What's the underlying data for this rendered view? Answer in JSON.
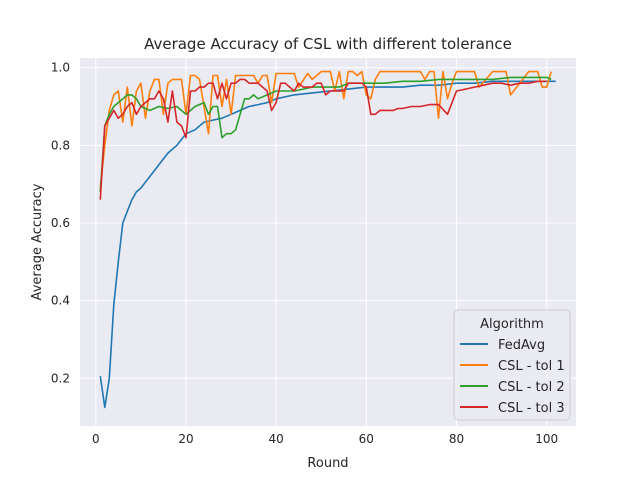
{
  "chart_data": {
    "type": "line",
    "title": "Average Accuracy of CSL with different tolerance",
    "xlabel": "Round",
    "ylabel": "Average Accuracy",
    "xlim": [
      -3.5,
      106.5
    ],
    "ylim": [
      0.077,
      1.025
    ],
    "xticks": [
      0,
      20,
      40,
      60,
      80,
      100
    ],
    "yticks": [
      0.2,
      0.4,
      0.6,
      0.8,
      1.0
    ],
    "xtick_labels": [
      "0",
      "20",
      "40",
      "60",
      "80",
      "100"
    ],
    "ytick_labels": [
      "0.2",
      "0.4",
      "0.6",
      "0.8",
      "1.0"
    ],
    "grid": true,
    "legend": {
      "title": "Algorithm",
      "position": "lower-right"
    },
    "series": [
      {
        "name": "FedAvg",
        "color": "#1f77b4",
        "x": [
          1,
          2,
          3,
          4,
          5,
          6,
          7,
          8,
          9,
          10,
          12,
          14,
          16,
          18,
          20,
          22,
          24,
          26,
          28,
          30,
          32,
          34,
          36,
          38,
          40,
          44,
          48,
          52,
          56,
          60,
          64,
          68,
          72,
          76,
          80,
          84,
          88,
          92,
          96,
          100,
          102
        ],
        "y": [
          0.205,
          0.125,
          0.2,
          0.39,
          0.5,
          0.6,
          0.63,
          0.66,
          0.68,
          0.69,
          0.72,
          0.75,
          0.78,
          0.8,
          0.83,
          0.84,
          0.86,
          0.865,
          0.87,
          0.88,
          0.89,
          0.9,
          0.905,
          0.91,
          0.92,
          0.93,
          0.935,
          0.94,
          0.945,
          0.95,
          0.95,
          0.95,
          0.955,
          0.955,
          0.96,
          0.96,
          0.965,
          0.965,
          0.965,
          0.965,
          0.965
        ]
      },
      {
        "name": "CSL - tol 1",
        "color": "#ff7f0e",
        "x": [
          1,
          2,
          3,
          4,
          5,
          6,
          7,
          8,
          9,
          10,
          11,
          12,
          13,
          14,
          15,
          16,
          17,
          18,
          19,
          20,
          21,
          22,
          23,
          24,
          25,
          26,
          27,
          28,
          29,
          30,
          31,
          32,
          33,
          34,
          35,
          36,
          37,
          38,
          39,
          40,
          44,
          45,
          47,
          48,
          50,
          52,
          53,
          54,
          55,
          56,
          57,
          58,
          59,
          60,
          61,
          62,
          63,
          64,
          65,
          66,
          68,
          70,
          72,
          73,
          74,
          75,
          76,
          77,
          78,
          79,
          80,
          84,
          85,
          88,
          89,
          90,
          91,
          92,
          96,
          98,
          99,
          100,
          101
        ],
        "y": [
          0.69,
          0.8,
          0.89,
          0.93,
          0.94,
          0.86,
          0.95,
          0.85,
          0.94,
          0.96,
          0.87,
          0.94,
          0.97,
          0.97,
          0.88,
          0.96,
          0.97,
          0.97,
          0.97,
          0.88,
          0.98,
          0.98,
          0.97,
          0.9,
          0.83,
          0.98,
          0.98,
          0.9,
          0.97,
          0.88,
          0.98,
          0.98,
          0.98,
          0.98,
          0.98,
          0.96,
          0.98,
          0.98,
          0.91,
          0.985,
          0.985,
          0.95,
          0.985,
          0.97,
          0.99,
          0.99,
          0.94,
          0.99,
          0.92,
          0.99,
          0.99,
          0.98,
          0.99,
          0.93,
          0.92,
          0.97,
          0.99,
          0.99,
          0.99,
          0.99,
          0.99,
          0.99,
          0.99,
          0.97,
          0.99,
          0.99,
          0.87,
          0.99,
          0.92,
          0.96,
          0.99,
          0.99,
          0.95,
          0.99,
          0.99,
          0.99,
          0.99,
          0.93,
          0.99,
          0.99,
          0.95,
          0.95,
          0.99
        ]
      },
      {
        "name": "CSL - tol 2",
        "color": "#2ca02c",
        "x": [
          1,
          2,
          3,
          4,
          5,
          6,
          7,
          8,
          9,
          10,
          12,
          14,
          16,
          18,
          20,
          22,
          24,
          25,
          26,
          27,
          28,
          29,
          30,
          31,
          32,
          33,
          34,
          35,
          36,
          38,
          40,
          42,
          44,
          46,
          48,
          50,
          52,
          54,
          56,
          58,
          60,
          64,
          68,
          72,
          76,
          80,
          84,
          88,
          92,
          96,
          100,
          101
        ],
        "y": [
          0.68,
          0.85,
          0.88,
          0.9,
          0.91,
          0.92,
          0.93,
          0.93,
          0.92,
          0.9,
          0.89,
          0.9,
          0.895,
          0.9,
          0.88,
          0.9,
          0.91,
          0.88,
          0.9,
          0.9,
          0.82,
          0.83,
          0.83,
          0.84,
          0.88,
          0.92,
          0.92,
          0.93,
          0.92,
          0.93,
          0.94,
          0.94,
          0.94,
          0.945,
          0.95,
          0.95,
          0.95,
          0.95,
          0.96,
          0.96,
          0.96,
          0.96,
          0.965,
          0.965,
          0.97,
          0.97,
          0.97,
          0.97,
          0.975,
          0.975,
          0.975,
          0.97
        ]
      },
      {
        "name": "CSL - tol 3",
        "color": "#d62728",
        "x": [
          1,
          2,
          3,
          4,
          5,
          6,
          7,
          8,
          9,
          10,
          11,
          12,
          13,
          14,
          15,
          16,
          17,
          18,
          19,
          20,
          21,
          22,
          23,
          24,
          25,
          26,
          27,
          28,
          29,
          30,
          31,
          32,
          33,
          34,
          35,
          36,
          37,
          38,
          39,
          40,
          41,
          42,
          43,
          44,
          45,
          46,
          47,
          48,
          49,
          50,
          51,
          52,
          53,
          54,
          55,
          56,
          57,
          58,
          59,
          60,
          61,
          62,
          63,
          64,
          65,
          66,
          67,
          68,
          70,
          72,
          74,
          76,
          78,
          80,
          82,
          84,
          86,
          88,
          90,
          92,
          94,
          96,
          98,
          100
        ],
        "y": [
          0.66,
          0.85,
          0.87,
          0.89,
          0.87,
          0.88,
          0.9,
          0.91,
          0.88,
          0.9,
          0.91,
          0.92,
          0.92,
          0.94,
          0.92,
          0.86,
          0.94,
          0.86,
          0.85,
          0.82,
          0.94,
          0.94,
          0.95,
          0.95,
          0.96,
          0.96,
          0.92,
          0.96,
          0.92,
          0.96,
          0.96,
          0.97,
          0.97,
          0.96,
          0.96,
          0.96,
          0.95,
          0.94,
          0.89,
          0.91,
          0.96,
          0.96,
          0.95,
          0.94,
          0.96,
          0.95,
          0.95,
          0.95,
          0.96,
          0.96,
          0.93,
          0.94,
          0.94,
          0.94,
          0.94,
          0.96,
          0.96,
          0.96,
          0.96,
          0.95,
          0.88,
          0.88,
          0.89,
          0.89,
          0.89,
          0.89,
          0.895,
          0.895,
          0.9,
          0.9,
          0.905,
          0.905,
          0.88,
          0.94,
          0.945,
          0.95,
          0.955,
          0.96,
          0.96,
          0.955,
          0.96,
          0.96,
          0.965,
          0.965
        ]
      }
    ]
  }
}
